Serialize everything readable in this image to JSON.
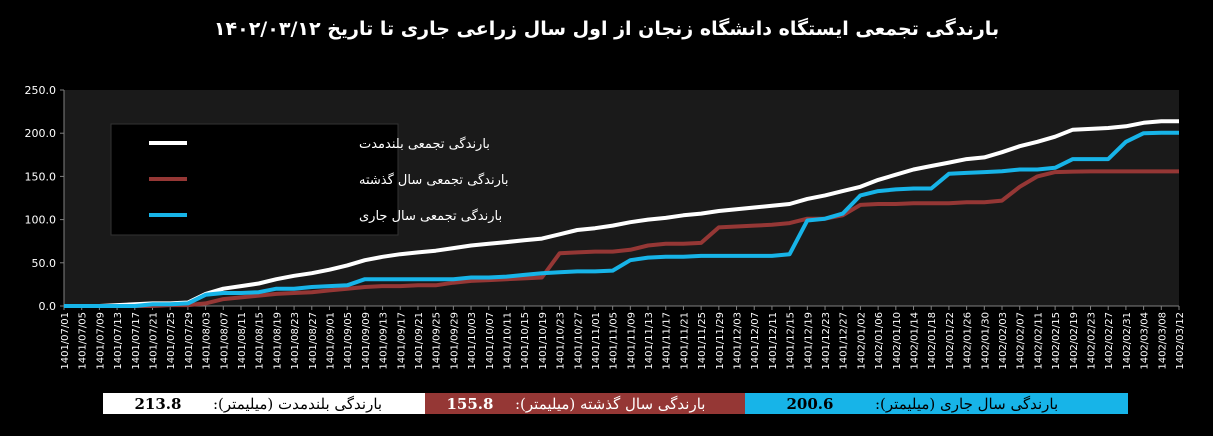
{
  "title": "بارندگی تجمعی ایستگاه دانشگاه زنجان از اول سال زراعی جاری تا تاریخ ۱۴۰۲/۰۳/۱۲",
  "colors": {
    "background": "#000000",
    "plot_area": "#1a1a1a",
    "long_term": "#ffffff",
    "last_year": "#953735",
    "current": "#17b4e8"
  },
  "summary": {
    "long_term_label": "بارندگی بلندمدت (میلیمتر):",
    "long_term_value": "213.8",
    "last_year_label": "بارندگی سال گذشته (میلیمتر):",
    "last_year_value": "155.8",
    "current_label": "بارندگی سال جاری (میلیمتر):",
    "current_value": "200.6"
  },
  "chart_data": {
    "type": "line",
    "title": "بارندگی تجمعی ایستگاه دانشگاه زنجان از اول سال زراعی جاری تا تاریخ ۱۴۰۲/۰۳/۱۲",
    "x_tick_labels": [
      "1401/07/01",
      "1401/07/05",
      "1401/07/09",
      "1401/07/13",
      "1401/07/17",
      "1401/07/21",
      "1401/07/25",
      "1401/07/29",
      "1401/08/03",
      "1401/08/07",
      "1401/08/11",
      "1401/08/15",
      "1401/08/19",
      "1401/08/23",
      "1401/08/27",
      "1401/09/01",
      "1401/09/05",
      "1401/09/09",
      "1401/09/13",
      "1401/09/17",
      "1401/09/21",
      "1401/09/25",
      "1401/09/29",
      "1401/10/03",
      "1401/10/07",
      "1401/10/11",
      "1401/10/15",
      "1401/10/19",
      "1401/10/23",
      "1401/10/27",
      "1401/11/01",
      "1401/11/05",
      "1401/11/09",
      "1401/11/13",
      "1401/11/17",
      "1401/11/21",
      "1401/11/25",
      "1401/11/29",
      "1401/12/03",
      "1401/12/07",
      "1401/12/11",
      "1401/12/15",
      "1401/12/19",
      "1401/12/23",
      "1401/12/27",
      "1402/01/02",
      "1402/01/06",
      "1402/01/10",
      "1402/01/14",
      "1402/01/18",
      "1402/01/22",
      "1402/01/26",
      "1402/01/30",
      "1402/02/03",
      "1402/02/07",
      "1402/02/11",
      "1402/02/15",
      "1402/02/19",
      "1402/02/23",
      "1402/02/27",
      "1402/02/31",
      "1402/03/04",
      "1402/03/08",
      "1402/03/12"
    ],
    "y_ticks": [
      "0.0",
      "50.0",
      "100.0",
      "150.0",
      "200.0",
      "250.0"
    ],
    "ylim": [
      0,
      250
    ],
    "grid": false,
    "legend_position": "top-left",
    "series": [
      {
        "name": "بارندگی تجمعی بلندمدت",
        "color": "#ffffff",
        "values": [
          0,
          0,
          0,
          1,
          2,
          3,
          3,
          4,
          14,
          20,
          23,
          26,
          31,
          35,
          38,
          42,
          47,
          53,
          57,
          60,
          62,
          64,
          67,
          70,
          72,
          74,
          76,
          78,
          83,
          88,
          90,
          93,
          97,
          100,
          102,
          105,
          107,
          110,
          112,
          114,
          116,
          118,
          124,
          128,
          133,
          138,
          146,
          152,
          158,
          162,
          166,
          170,
          172,
          178,
          185,
          190,
          196,
          204,
          205,
          206,
          208,
          212,
          213.8,
          213.8
        ]
      },
      {
        "name": "بارندگی تجمعی سال گذشته",
        "color": "#953735",
        "values": [
          0,
          0,
          0,
          0,
          0,
          0,
          1,
          1,
          3,
          8,
          10,
          12,
          14,
          15,
          16,
          18,
          20,
          22,
          23,
          23,
          24,
          24,
          27,
          29,
          30,
          31,
          32,
          33,
          61,
          62,
          63,
          63,
          65,
          70,
          72,
          72,
          73,
          91,
          92,
          93,
          94,
          96,
          101,
          101,
          105,
          117,
          118,
          118,
          119,
          119,
          119,
          120,
          120,
          122,
          138,
          150,
          155,
          155.5,
          155.8,
          155.8,
          155.8,
          155.8,
          155.8,
          155.8
        ]
      },
      {
        "name": "بارندگی تجمعی سال جاری",
        "color": "#17b4e8",
        "values": [
          0,
          0,
          0,
          0,
          0,
          2,
          2,
          3,
          13,
          15,
          15,
          16,
          20,
          20,
          22,
          23,
          24,
          31,
          31,
          31,
          31,
          31,
          31,
          33,
          33,
          34,
          36,
          38,
          39,
          40,
          40,
          41,
          53,
          56,
          57,
          57,
          58,
          58,
          58,
          58,
          58,
          60,
          99,
          101,
          107,
          128,
          133,
          135,
          136,
          136,
          153,
          154,
          155,
          156,
          158,
          158,
          160,
          170,
          170,
          170,
          190,
          200,
          200.6,
          200.6
        ]
      }
    ]
  }
}
